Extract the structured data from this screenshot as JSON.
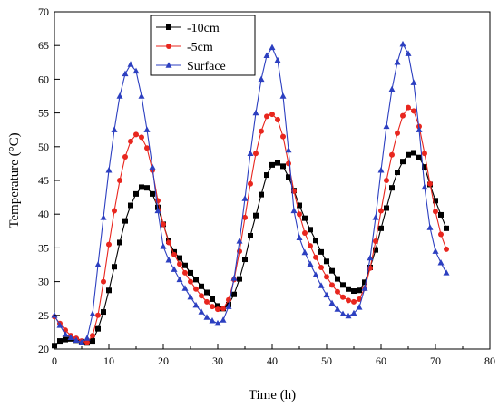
{
  "chart_data": {
    "type": "line",
    "title": "",
    "xlabel": "Time (h)",
    "ylabel": "Temperature (°C)",
    "xlim": [
      0,
      80
    ],
    "ylim": [
      20,
      70
    ],
    "xticks": [
      0,
      10,
      20,
      30,
      40,
      50,
      60,
      70,
      80
    ],
    "yticks": [
      20,
      25,
      30,
      35,
      40,
      45,
      50,
      55,
      60,
      65,
      70
    ],
    "grid": false,
    "legend_position": "top-left",
    "x": [
      0,
      1,
      2,
      3,
      4,
      5,
      6,
      7,
      8,
      9,
      10,
      11,
      12,
      13,
      14,
      15,
      16,
      17,
      18,
      19,
      20,
      21,
      22,
      23,
      24,
      25,
      26,
      27,
      28,
      29,
      30,
      31,
      32,
      33,
      34,
      35,
      36,
      37,
      38,
      39,
      40,
      41,
      42,
      43,
      44,
      45,
      46,
      47,
      48,
      49,
      50,
      51,
      52,
      53,
      54,
      55,
      56,
      57,
      58,
      59,
      60,
      61,
      62,
      63,
      64,
      65,
      66,
      67,
      68,
      69,
      70,
      71,
      72
    ],
    "series": [
      {
        "name": "-10cm",
        "color": "#000000",
        "marker": "square",
        "values": [
          20.5,
          21.2,
          21.4,
          21.5,
          21.3,
          21.1,
          20.9,
          21.2,
          23.0,
          25.5,
          28.7,
          32.2,
          35.8,
          39.0,
          41.3,
          43.0,
          44.0,
          43.9,
          43.0,
          41.0,
          38.5,
          36.0,
          34.4,
          33.5,
          32.4,
          31.3,
          30.3,
          29.3,
          28.4,
          27.4,
          26.4,
          26.0,
          26.6,
          28.1,
          30.4,
          33.3,
          36.8,
          39.8,
          42.9,
          45.8,
          47.3,
          47.6,
          47.1,
          45.5,
          43.5,
          41.3,
          39.4,
          37.7,
          36.1,
          34.4,
          33.0,
          31.6,
          30.4,
          29.5,
          28.9,
          28.6,
          28.7,
          29.9,
          32.1,
          34.7,
          37.9,
          40.9,
          43.9,
          46.2,
          47.8,
          48.8,
          49.1,
          48.4,
          47.0,
          44.4,
          42.0,
          39.9,
          37.9
        ]
      },
      {
        "name": "-5cm",
        "color": "#e8261e",
        "marker": "circle",
        "values": [
          24.8,
          23.8,
          22.8,
          22.0,
          21.6,
          21.2,
          21.0,
          22.0,
          25.0,
          30.0,
          35.5,
          40.5,
          45.0,
          48.5,
          50.8,
          51.8,
          51.4,
          49.8,
          46.5,
          42.0,
          38.5,
          35.8,
          34.0,
          32.6,
          31.3,
          30.0,
          28.9,
          27.9,
          27.0,
          26.3,
          25.9,
          26.0,
          27.3,
          30.3,
          34.5,
          39.5,
          44.5,
          49.0,
          52.3,
          54.5,
          54.8,
          54.0,
          51.5,
          47.5,
          43.4,
          40.0,
          37.2,
          35.3,
          33.6,
          32.1,
          30.7,
          29.5,
          28.5,
          27.7,
          27.2,
          27.0,
          27.4,
          29.0,
          32.0,
          36.0,
          40.5,
          45.0,
          48.8,
          52.0,
          54.6,
          55.8,
          55.3,
          53.0,
          49.0,
          44.5,
          40.4,
          37.0,
          34.8
        ]
      },
      {
        "name": "Surface",
        "color": "#2c3fc0",
        "marker": "triangle",
        "values": [
          25.0,
          23.5,
          22.2,
          21.7,
          21.3,
          21.0,
          21.6,
          25.2,
          32.5,
          39.5,
          46.5,
          52.5,
          57.5,
          60.8,
          62.2,
          61.2,
          57.5,
          52.5,
          47.0,
          40.5,
          35.2,
          33.2,
          31.8,
          30.3,
          29.0,
          27.7,
          26.5,
          25.5,
          24.7,
          24.2,
          23.8,
          24.3,
          26.3,
          30.5,
          36.0,
          42.3,
          49.0,
          55.0,
          60.0,
          63.5,
          64.7,
          62.8,
          57.5,
          49.5,
          40.5,
          36.5,
          34.3,
          32.6,
          31.0,
          29.4,
          28.0,
          26.8,
          25.9,
          25.2,
          24.9,
          25.3,
          26.2,
          29.0,
          33.5,
          39.5,
          46.5,
          53.0,
          58.5,
          62.5,
          65.2,
          63.8,
          59.5,
          52.5,
          44.0,
          38.0,
          34.5,
          32.8,
          31.3
        ]
      }
    ]
  }
}
